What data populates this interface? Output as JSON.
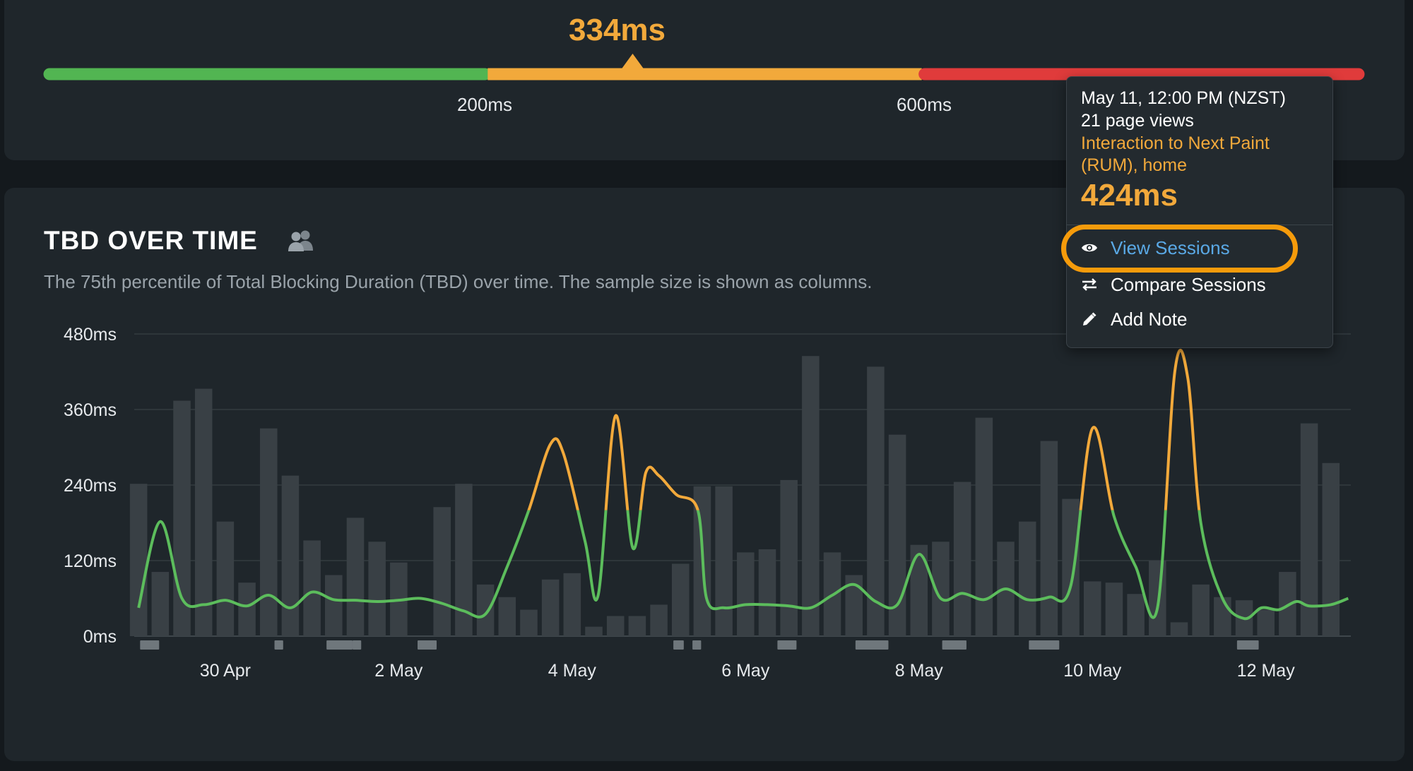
{
  "summary": {
    "current_value": "334ms",
    "current_value_ms": 334,
    "thresholds": [
      {
        "label": "200ms",
        "value": 200
      },
      {
        "label": "600ms",
        "value": 600
      }
    ],
    "colors": {
      "good": "#52b552",
      "needs_improvement": "#f2a93b",
      "poor": "#e03b3b"
    }
  },
  "chart_card": {
    "title": "TBD OVER TIME",
    "subtitle": "The 75th percentile of Total Blocking Duration (TBD) over time. The sample size is shown as columns."
  },
  "tooltip": {
    "date": "May 11, 12:00 PM (NZST)",
    "page_views": "21 page views",
    "metric_line1": "Interaction to Next Paint",
    "metric_line2": "(RUM), home",
    "value": "424ms",
    "menu": {
      "view_sessions": "View Sessions",
      "compare_sessions": "Compare Sessions",
      "add_note": "Add Note"
    }
  },
  "chart_data": {
    "type": "line",
    "title": "TBD OVER TIME",
    "ylim": [
      0,
      480
    ],
    "y_ticks": [
      "0ms",
      "120ms",
      "240ms",
      "360ms",
      "480ms"
    ],
    "x_ticks": [
      "30 Apr",
      "2 May",
      "4 May",
      "6 May",
      "8 May",
      "10 May",
      "12 May"
    ],
    "x_range_days": [
      28.95,
      42.98
    ],
    "threshold_ms": 200,
    "line_colors": {
      "below_threshold": "#5cbd5c",
      "above_threshold": "#f2a93b"
    },
    "bar_color": "#394045",
    "series": [
      {
        "type": "line",
        "x": [
          29.0,
          29.25,
          29.5,
          29.75,
          30.0,
          30.25,
          30.5,
          30.75,
          31.0,
          31.25,
          31.5,
          31.75,
          32.0,
          32.25,
          32.5,
          32.75,
          33.0,
          33.25,
          33.5,
          33.75,
          33.9,
          34.15,
          34.3,
          34.5,
          34.7,
          34.85,
          35.0,
          35.2,
          35.45,
          35.55,
          35.75,
          36.0,
          36.25,
          36.5,
          36.75,
          37.0,
          37.25,
          37.5,
          37.75,
          38.0,
          38.25,
          38.5,
          38.75,
          39.0,
          39.25,
          39.5,
          39.75,
          40.0,
          40.25,
          40.5,
          40.75,
          40.95,
          41.1,
          41.25,
          41.5,
          41.75,
          41.95,
          42.15,
          42.35,
          42.5,
          42.75,
          42.95
        ],
        "y": [
          45,
          182,
          60,
          50,
          57,
          48,
          65,
          45,
          70,
          58,
          57,
          55,
          57,
          60,
          52,
          40,
          35,
          110,
          200,
          305,
          290,
          150,
          65,
          350,
          140,
          260,
          255,
          225,
          200,
          60,
          45,
          50,
          50,
          48,
          45,
          65,
          82,
          55,
          50,
          130,
          60,
          68,
          58,
          75,
          58,
          62,
          80,
          330,
          190,
          110,
          45,
          420,
          410,
          180,
          60,
          28,
          45,
          42,
          55,
          48,
          50,
          60
        ]
      },
      {
        "type": "bar",
        "name": "sample size",
        "x": [
          29.0,
          29.25,
          29.5,
          29.75,
          30.0,
          30.25,
          30.5,
          30.75,
          31.0,
          31.25,
          31.5,
          31.75,
          32.0,
          32.25,
          32.5,
          32.75,
          33.0,
          33.25,
          33.5,
          33.75,
          34.0,
          34.25,
          34.5,
          34.75,
          35.0,
          35.25,
          35.5,
          35.75,
          36.0,
          36.25,
          36.5,
          36.75,
          37.0,
          37.25,
          37.5,
          37.75,
          38.0,
          38.25,
          38.5,
          38.75,
          39.0,
          39.25,
          39.5,
          39.75,
          40.0,
          40.25,
          40.5,
          40.75,
          41.0,
          41.25,
          41.5,
          41.75,
          42.0,
          42.25,
          42.5,
          42.75,
          42.95
        ],
        "y": [
          242,
          102,
          374,
          393,
          182,
          85,
          330,
          255,
          152,
          97,
          188,
          150,
          117,
          0,
          205,
          242,
          82,
          62,
          42,
          90,
          100,
          15,
          32,
          32,
          50,
          115,
          238,
          238,
          133,
          138,
          248,
          445,
          133,
          97,
          428,
          320,
          145,
          150,
          245,
          347,
          150,
          182,
          310,
          218,
          87,
          85,
          67,
          120,
          22,
          82,
          62,
          57,
          42,
          102,
          338,
          275,
          0
        ]
      }
    ]
  }
}
